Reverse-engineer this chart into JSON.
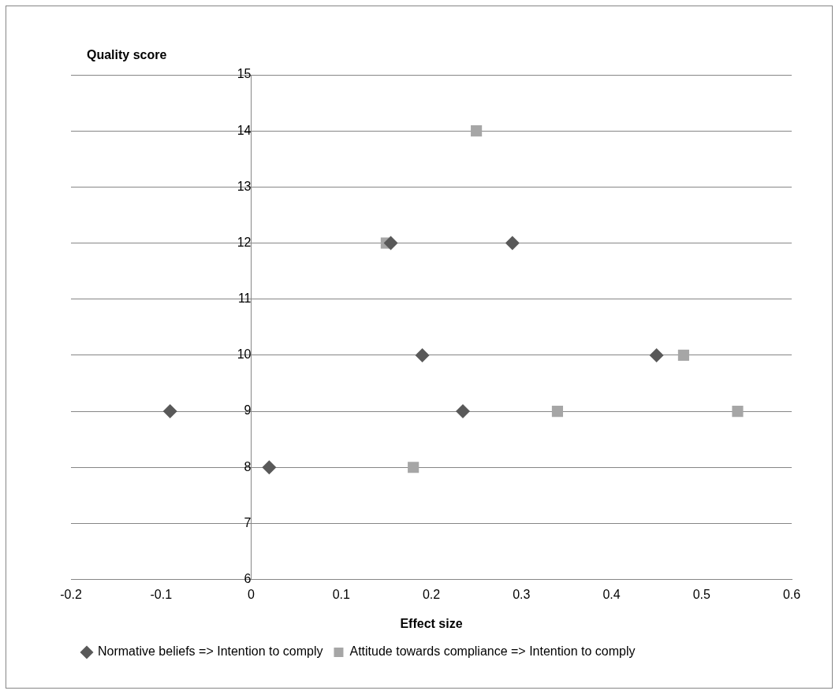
{
  "chart_data": {
    "type": "scatter",
    "xlabel": "Effect size",
    "ylabel": "Quality score",
    "xlim": [
      -0.2,
      0.6
    ],
    "xticks": [
      -0.2,
      -0.1,
      0,
      0.1,
      0.2,
      0.3,
      0.4,
      0.5,
      0.6
    ],
    "ylim": [
      6,
      15
    ],
    "yticks": [
      6,
      7,
      8,
      9,
      10,
      11,
      12,
      13,
      14,
      15
    ],
    "grid": "y",
    "legend": "bottom",
    "series": [
      {
        "name": "Normative beliefs => Intention to comply",
        "color": "#595959",
        "marker": "diamond",
        "x": [
          -0.09,
          0.02,
          0.155,
          0.29,
          0.19,
          0.235,
          0.45
        ],
        "values": [
          9,
          8,
          12,
          12,
          10,
          9,
          10
        ]
      },
      {
        "name": "Attitude towards compliance => Intention to comply",
        "color": "#a6a6a6",
        "marker": "square",
        "x": [
          0.25,
          0.15,
          0.48,
          0.34,
          0.54,
          0.18
        ],
        "values": [
          14,
          12,
          10,
          9,
          9,
          8
        ]
      }
    ]
  }
}
